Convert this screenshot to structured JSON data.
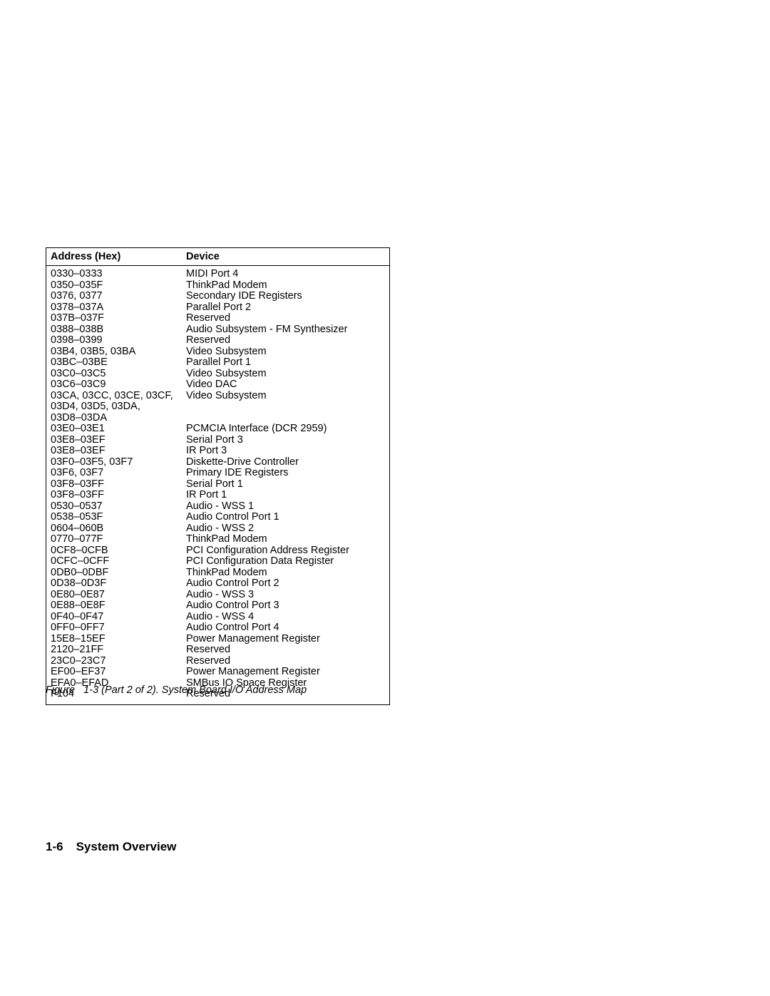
{
  "table": {
    "headers": {
      "address": "Address (Hex)",
      "device": "Device"
    },
    "rows": [
      {
        "address": "0330–0333",
        "device": "MIDI Port 4"
      },
      {
        "address": "0350–035F",
        "device": "ThinkPad Modem"
      },
      {
        "address": "0376, 0377",
        "device": "Secondary IDE Registers"
      },
      {
        "address": "0378–037A",
        "device": "Parallel Port 2"
      },
      {
        "address": "037B–037F",
        "device": "Reserved"
      },
      {
        "address": "0388–038B",
        "device": "Audio Subsystem - FM Synthesizer"
      },
      {
        "address": "0398–0399",
        "device": "Reserved"
      },
      {
        "address": "03B4, 03B5, 03BA",
        "device": "Video Subsystem"
      },
      {
        "address": "03BC–03BE",
        "device": "Parallel Port 1"
      },
      {
        "address": "03C0–03C5",
        "device": "Video Subsystem"
      },
      {
        "address": "03C6–03C9",
        "device": "Video DAC"
      },
      {
        "address": "03CA, 03CC, 03CE, 03CF,\n03D4, 03D5, 03DA,\n03D8–03DA",
        "device": "Video Subsystem"
      },
      {
        "address": "03E0–03E1",
        "device": "PCMCIA Interface (DCR 2959)"
      },
      {
        "address": "03E8–03EF",
        "device": "Serial Port 3"
      },
      {
        "address": "03E8–03EF",
        "device": "IR Port 3"
      },
      {
        "address": "03F0–03F5, 03F7",
        "device": "Diskette-Drive Controller"
      },
      {
        "address": "03F6, 03F7",
        "device": "Primary IDE Registers"
      },
      {
        "address": "03F8–03FF",
        "device": "Serial Port 1"
      },
      {
        "address": "03F8–03FF",
        "device": "IR Port 1"
      },
      {
        "address": "0530–0537",
        "device": "Audio - WSS 1"
      },
      {
        "address": "0538–053F",
        "device": "Audio Control Port 1"
      },
      {
        "address": "0604–060B",
        "device": "Audio - WSS 2"
      },
      {
        "address": "0770–077F",
        "device": "ThinkPad Modem"
      },
      {
        "address": "0CF8–0CFB",
        "device": "PCI Configuration Address Register"
      },
      {
        "address": "0CFC–0CFF",
        "device": "PCI Configuration Data Register"
      },
      {
        "address": "0DB0–0DBF",
        "device": "ThinkPad Modem"
      },
      {
        "address": "0D38–0D3F",
        "device": "Audio Control Port 2"
      },
      {
        "address": "0E80–0E87",
        "device": "Audio - WSS 3"
      },
      {
        "address": "0E88–0E8F",
        "device": "Audio Control Port 3"
      },
      {
        "address": "0F40–0F47",
        "device": "Audio - WSS 4"
      },
      {
        "address": "0FF0–0FF7",
        "device": "Audio Control Port 4"
      },
      {
        "address": "15E8–15EF",
        "device": "Power Management Register"
      },
      {
        "address": "2120–21FF",
        "device": "Reserved"
      },
      {
        "address": "23C0–23C7",
        "device": "Reserved"
      },
      {
        "address": "EF00–EF37",
        "device": "Power Management Register"
      },
      {
        "address": "EFA0–EFAD",
        "device": "SMBus IO Space Register"
      },
      {
        "address": "F104",
        "device": "Reserved"
      }
    ]
  },
  "caption": "Figure   1-3 (Part 2 of 2). System Board I/O Address Map",
  "footer": {
    "page": "1-6",
    "title": "System Overview"
  }
}
